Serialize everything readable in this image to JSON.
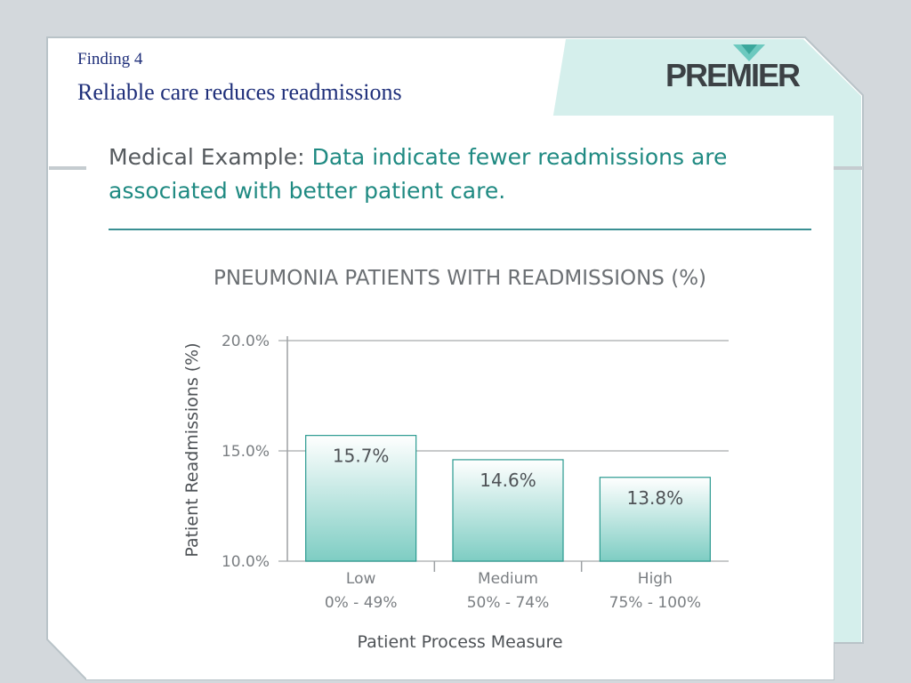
{
  "slide": {
    "finding_label": "Finding 4",
    "title": "Reliable care reduces readmissions",
    "logo_text": "PREMIER"
  },
  "card": {
    "heading_lead": "Medical Example:",
    "heading_rest": "Data indicate fewer readmissions are associated with better patient care."
  },
  "colors": {
    "title_blue": "#1f2f7a",
    "accent_teal": "#1f8a82",
    "bar_top": "#ffffff",
    "bar_bottom": "#7ecdc3",
    "bar_border": "#2a9a90",
    "panel_mint": "#d5efec"
  },
  "chart_data": {
    "type": "bar",
    "title": "PNEUMONIA PATIENTS WITH READMISSIONS (%)",
    "xlabel": "Patient Process Measure",
    "ylabel": "Patient Readmissions (%)",
    "categories": [
      [
        "Low",
        "0% - 49%"
      ],
      [
        "Medium",
        "50% - 74%"
      ],
      [
        "High",
        "75% - 100%"
      ]
    ],
    "values": [
      15.7,
      14.6,
      13.8
    ],
    "value_labels": [
      "15.7%",
      "14.6%",
      "13.8%"
    ],
    "ylim": [
      10,
      20
    ],
    "yticks": [
      10,
      15,
      20
    ],
    "ytick_labels": [
      "10.0%",
      "15.0%",
      "20.0%"
    ],
    "grid": true,
    "legend": "none"
  }
}
